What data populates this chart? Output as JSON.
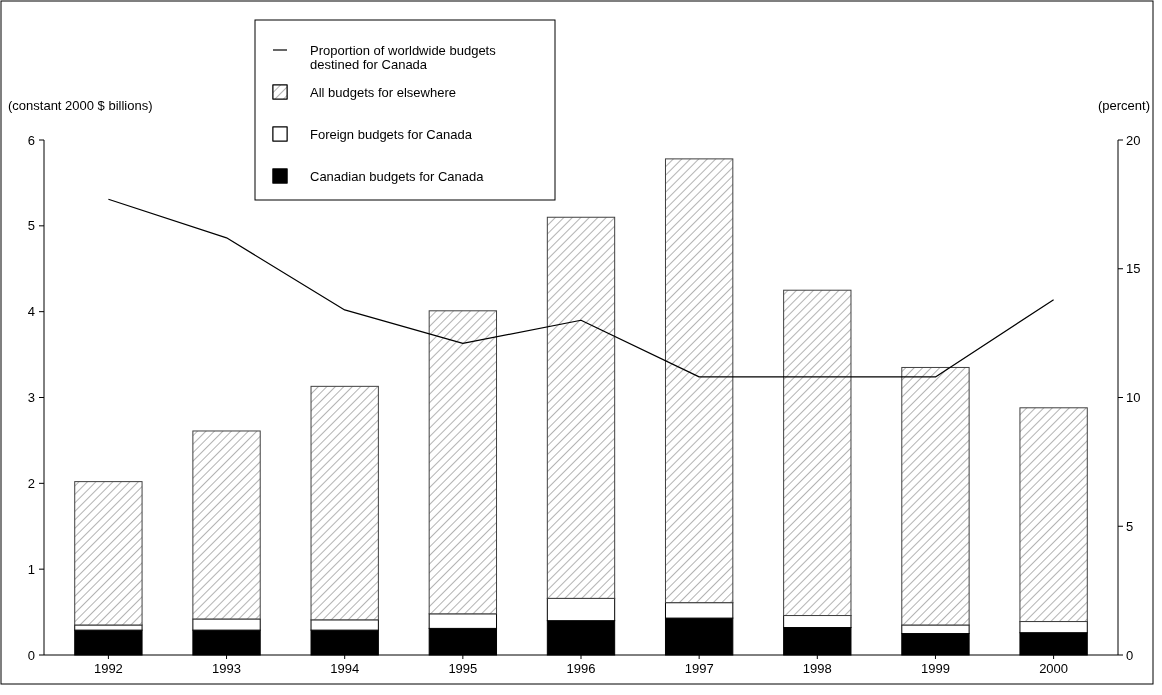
{
  "chart_data": {
    "type": "bar",
    "stacked": true,
    "categories": [
      "1992",
      "1993",
      "1994",
      "1995",
      "1996",
      "1997",
      "1998",
      "1999",
      "2000"
    ],
    "ylabel": "(constant 2000 $ billions)",
    "y2label": "(percent)",
    "ylim": [
      0,
      6
    ],
    "yticks": [
      0,
      1,
      2,
      3,
      4,
      5,
      6
    ],
    "y2lim": [
      0,
      20
    ],
    "y2ticks": [
      0,
      5,
      10,
      15,
      20
    ],
    "legend": "top",
    "series": [
      {
        "name": "Canadian budgets for Canada",
        "color": "#000000",
        "values": [
          0.29,
          0.29,
          0.29,
          0.31,
          0.4,
          0.43,
          0.32,
          0.25,
          0.26
        ]
      },
      {
        "name": "Foreign budgets for Canada",
        "color": "#ffffff",
        "values": [
          0.06,
          0.13,
          0.12,
          0.17,
          0.26,
          0.18,
          0.14,
          0.1,
          0.13
        ]
      },
      {
        "name": "All budgets for elsewhere",
        "color": "#404040",
        "values": [
          1.67,
          2.19,
          2.72,
          3.53,
          4.44,
          5.17,
          3.79,
          3.0,
          2.49
        ]
      },
      {
        "name": "Proportion of worldwide budgets destined for Canada",
        "type": "line",
        "axis": "y2",
        "color": "#000000",
        "values": [
          17.7,
          16.2,
          13.4,
          12.1,
          13.0,
          10.8,
          10.8,
          10.8,
          13.8
        ]
      }
    ]
  }
}
